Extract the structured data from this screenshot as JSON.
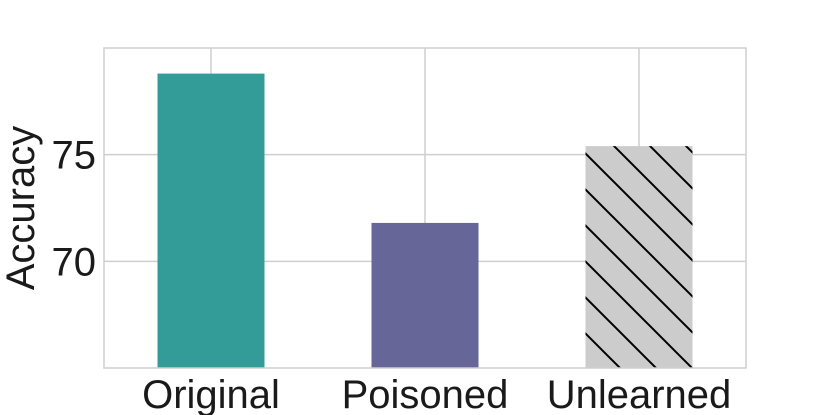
{
  "chart_data": {
    "type": "bar",
    "categories": [
      "Original",
      "Poisoned",
      "Unlearned"
    ],
    "values": [
      78.8,
      71.8,
      75.4
    ],
    "title": "",
    "xlabel": "",
    "ylabel": "Accuracy",
    "ylim": [
      65,
      80
    ],
    "yticks": [
      70,
      75
    ],
    "grid": true,
    "colors": [
      "#339c99",
      "#666699",
      "#cccccc"
    ],
    "patterns": [
      "none",
      "none",
      "diagonal-hatch"
    ],
    "hatch_color": "#000000"
  }
}
